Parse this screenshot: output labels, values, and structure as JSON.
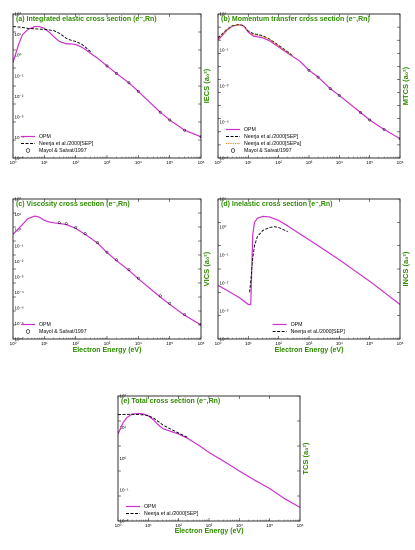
{
  "chart_data": [
    {
      "type": "line",
      "title": "(a) Integrated elastic cross section (e⁻,Rn)",
      "xlabel": "",
      "ylabel": "IECS (a₀²)",
      "xscale": "log",
      "yscale": "log",
      "xlim": [
        1,
        1000000
      ],
      "ylim": [
        1e-05,
        1000
      ],
      "x_ticks": [
        "10⁰",
        "10¹",
        "10²",
        "10³",
        "10⁴",
        "10⁵",
        "10⁶"
      ],
      "y_ticks": [
        "10⁻⁵",
        "10⁻⁴",
        "10⁻³",
        "10⁻²",
        "10⁻¹",
        "10⁰",
        "10¹",
        "10²"
      ],
      "legend_position": "bottom-left",
      "series": [
        {
          "name": "OPM",
          "style": "solid",
          "color": "#cc33cc",
          "x": [
            1,
            1.5,
            2,
            3,
            5,
            7,
            10,
            15,
            20,
            30,
            50,
            70,
            100,
            150,
            200,
            300,
            500,
            1000,
            2000,
            5000,
            10000,
            50000,
            100000,
            300000,
            1000000
          ],
          "y": [
            2,
            20,
            70,
            140,
            200,
            200,
            160,
            90,
            55,
            30,
            22,
            22,
            20,
            15,
            11,
            6.5,
            3.5,
            1.3,
            0.5,
            0.15,
            0.05,
            0.0035,
            0.0013,
            0.00035,
            0.00015
          ]
        },
        {
          "name": "Neerja et al./2000[SEP]",
          "style": "dashed",
          "color": "#000000",
          "x": [
            1,
            2,
            3,
            5,
            7,
            10,
            20,
            30,
            50,
            70,
            100,
            150,
            200,
            300
          ],
          "y": [
            200,
            180,
            160,
            150,
            145,
            140,
            120,
            85,
            45,
            35,
            30,
            22,
            15,
            8
          ]
        },
        {
          "name": "Mayol & Salvat/1997",
          "style": "circle",
          "color": "#000000",
          "x": [
            1000,
            2000,
            5000,
            10000,
            50000,
            100000,
            300000,
            1000000
          ],
          "y": [
            1.3,
            0.5,
            0.15,
            0.05,
            0.0035,
            0.0013,
            0.00035,
            0.00015
          ]
        }
      ]
    },
    {
      "type": "line",
      "title": "(b) Momentum transfer cross section (e⁻,Rn)",
      "xlabel": "",
      "ylabel": "MTCS (a₀²)",
      "xscale": "log",
      "yscale": "log",
      "xlim": [
        1,
        1000000
      ],
      "ylim": [
        1e-08,
        1000
      ],
      "x_ticks": [
        "10⁰",
        "10¹",
        "10²",
        "10³",
        "10⁴",
        "10⁵",
        "10⁶"
      ],
      "y_ticks": [
        "10⁻⁷",
        "10⁻⁵",
        "10⁻³",
        "10⁻¹",
        "10¹"
      ],
      "legend_position": "bottom-left",
      "series": [
        {
          "name": "OPM",
          "style": "solid",
          "color": "#cc33cc",
          "x": [
            1,
            2,
            3,
            5,
            7,
            10,
            15,
            20,
            30,
            50,
            100,
            200,
            500,
            1000,
            2000,
            5000,
            10000,
            50000,
            100000,
            300000,
            1000000
          ],
          "y": [
            10,
            60,
            120,
            150,
            120,
            40,
            20,
            18,
            15,
            9,
            3,
            1,
            0.25,
            0.05,
            0.015,
            0.002,
            0.0006,
            3e-05,
            8e-06,
            1.5e-06,
            3e-07
          ]
        },
        {
          "name": "Neerja et al./2000[SEP]",
          "style": "dashed",
          "color": "#000000",
          "x": [
            1,
            2,
            3,
            5,
            7,
            10,
            15,
            20,
            30,
            50,
            100,
            200,
            300
          ],
          "y": [
            15,
            70,
            130,
            160,
            130,
            50,
            30,
            28,
            22,
            12,
            4,
            1.3,
            0.6
          ]
        },
        {
          "name": "Neerja et al./2000[SEPa]",
          "style": "dotted",
          "color": "#d98000",
          "x": [
            1,
            2,
            3,
            5,
            7,
            10,
            15,
            20,
            30,
            50,
            100,
            200,
            300
          ],
          "y": [
            12,
            65,
            125,
            155,
            125,
            45,
            25,
            23,
            19,
            11,
            3.6,
            1.2,
            0.55
          ]
        },
        {
          "name": "Mayol & Salvat/1997",
          "style": "circle",
          "color": "#000000",
          "x": [
            1000,
            2000,
            5000,
            10000,
            50000,
            100000,
            300000,
            1000000
          ],
          "y": [
            0.05,
            0.015,
            0.002,
            0.0006,
            3e-05,
            8e-06,
            1.5e-06,
            3e-07
          ]
        }
      ]
    },
    {
      "type": "line",
      "title": "(c) Viscosity cross section (e⁻,Rn)",
      "xlabel": "Electron Energy (eV)",
      "ylabel": "VICS (a₀²)",
      "xscale": "log",
      "yscale": "log",
      "xlim": [
        1,
        1000000
      ],
      "ylim": [
        1e-07,
        1000
      ],
      "x_ticks": [
        "10⁰",
        "10¹",
        "10²",
        "10³",
        "10⁴",
        "10⁵",
        "10⁶"
      ],
      "y_ticks": [
        "10⁻⁷",
        "10⁻⁶",
        "10⁻⁵",
        "10⁻⁴",
        "10⁻³",
        "10⁻²",
        "10⁻¹",
        "10⁰",
        "10¹",
        "10²"
      ],
      "legend_position": "bottom-left",
      "series": [
        {
          "name": "OPM",
          "style": "solid",
          "color": "#cc33cc",
          "x": [
            1,
            2,
            3,
            5,
            7,
            10,
            15,
            20,
            30,
            50,
            100,
            200,
            500,
            1000,
            2000,
            5000,
            10000,
            50000,
            100000,
            300000,
            1000000
          ],
          "y": [
            3,
            15,
            40,
            60,
            50,
            30,
            22,
            20,
            18,
            15,
            8,
            3,
            0.7,
            0.15,
            0.04,
            0.008,
            0.002,
            0.0001,
            3e-05,
            5e-06,
            1e-06
          ]
        },
        {
          "name": "Mayol & Salvat/1997",
          "style": "circle",
          "color": "#000000",
          "x": [
            30,
            50,
            100,
            200,
            500,
            1000,
            2000,
            5000,
            10000,
            50000,
            100000,
            300000,
            1000000
          ],
          "y": [
            20,
            17,
            9,
            3.3,
            0.75,
            0.16,
            0.045,
            0.009,
            0.0022,
            0.00012,
            3.5e-05,
            5.5e-06,
            1.1e-06
          ]
        }
      ]
    },
    {
      "type": "line",
      "title": "(d) Inelastic cross section (e⁻,Rn)",
      "xlabel": "Electron Energy (eV)",
      "ylabel": "INCS (a₀²)",
      "xscale": "log",
      "yscale": "log",
      "xlim": [
        1,
        1000000
      ],
      "ylim": [
        0.0001,
        100
      ],
      "x_ticks": [
        "10⁰",
        "10¹",
        "10²",
        "10³",
        "10⁴",
        "10⁵",
        "10⁶"
      ],
      "y_ticks": [
        "10⁻⁴",
        "10⁻³",
        "10⁻²",
        "10⁻¹",
        "10⁰",
        "10¹"
      ],
      "legend_position": "bottom-center",
      "series": [
        {
          "name": "OPM",
          "style": "solid",
          "color": "#cc33cc",
          "x": [
            1,
            2,
            5,
            10,
            12,
            14,
            16,
            20,
            30,
            50,
            100,
            200,
            500,
            1000,
            3000,
            10000,
            30000,
            100000,
            300000,
            1000000
          ],
          "y": [
            0.02,
            0.012,
            0.006,
            0.003,
            0.003,
            3,
            10,
            15,
            18,
            17,
            12,
            7,
            3.2,
            1.8,
            0.7,
            0.25,
            0.09,
            0.03,
            0.01,
            0.003
          ]
        },
        {
          "name": "Neerja et al./2000[SEP]",
          "style": "dashed",
          "color": "#000000",
          "x": [
            11,
            12,
            14,
            16,
            20,
            30,
            50,
            70,
            100,
            200
          ],
          "y": [
            0.01,
            0.03,
            0.3,
            1,
            2.5,
            4.5,
            6,
            6.5,
            6,
            4
          ]
        }
      ]
    },
    {
      "type": "line",
      "title": "(e) Total cross section (e⁻,Rn)",
      "xlabel": "Electron Energy (eV)",
      "ylabel": "TCS (a₀²)",
      "xscale": "log",
      "yscale": "log",
      "xlim": [
        1,
        1000000
      ],
      "ylim": [
        0.01,
        1000
      ],
      "x_ticks": [
        "10⁰",
        "10¹",
        "10²",
        "10³",
        "10⁴",
        "10⁵",
        "10⁶"
      ],
      "y_ticks": [
        "10⁻²",
        "10⁻¹",
        "10⁰",
        "10¹",
        "10²"
      ],
      "legend_position": "bottom-left",
      "series": [
        {
          "name": "OPM",
          "style": "solid",
          "color": "#cc33cc",
          "x": [
            1,
            1.5,
            2,
            3,
            5,
            7,
            10,
            15,
            20,
            30,
            50,
            100,
            200,
            500,
            1000,
            3000,
            10000,
            30000,
            100000,
            300000,
            1000000
          ],
          "y": [
            30,
            90,
            140,
            190,
            200,
            190,
            160,
            110,
            75,
            50,
            40,
            30,
            20,
            10,
            5.5,
            2.5,
            1,
            0.45,
            0.2,
            0.08,
            0.035
          ]
        },
        {
          "name": "Neerja et al./2000[SEP]",
          "style": "dashed",
          "color": "#000000",
          "x": [
            1,
            2,
            3,
            5,
            7,
            10,
            15,
            20,
            30,
            50,
            100,
            200
          ],
          "y": [
            180,
            185,
            185,
            180,
            175,
            165,
            130,
            100,
            70,
            50,
            33,
            22
          ]
        }
      ]
    }
  ]
}
